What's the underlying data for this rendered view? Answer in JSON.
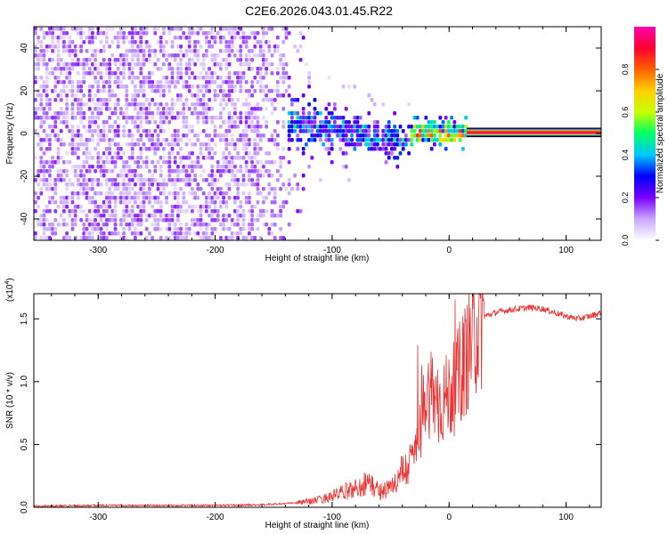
{
  "chart_data": [
    {
      "type": "heatmap",
      "title": "C2E6.2026.043.01.45.R22",
      "xlabel": "Height of straight line (km)",
      "ylabel": "Frequency (Hz)",
      "xlim": [
        -355,
        130
      ],
      "ylim": [
        -50,
        50
      ],
      "x_ticks": [
        -300,
        -200,
        -100,
        0,
        100
      ],
      "x_tick_labels": [
        "-300",
        "-200",
        "-100",
        "0",
        "100"
      ],
      "y_ticks": [
        -40,
        -20,
        0,
        20,
        40
      ],
      "y_tick_labels": [
        "-40",
        "-20",
        "0",
        "20",
        "40"
      ],
      "colorbar": {
        "label": "Normalized spectral amplitude",
        "range": [
          0,
          1
        ],
        "ticks": [
          0.0,
          0.2,
          0.4,
          0.6,
          0.8
        ],
        "tick_labels": [
          "0.0",
          "0.2",
          "0.4",
          "0.6",
          "0.8"
        ],
        "colors": [
          "#ffffff",
          "#c8a6ff",
          "#7a00ff",
          "#0000ff",
          "#00c8ff",
          "#00ff66",
          "#c8ff00",
          "#ffd000",
          "#ff6000",
          "#ff0030",
          "#ff00b0"
        ]
      },
      "regions": [
        {
          "name": "noise",
          "x_range": [
            -355,
            -140
          ],
          "freq_spread": 50,
          "amplitude": 0.12
        },
        {
          "name": "transition",
          "x_range": [
            -140,
            -35
          ],
          "freq_center_start": 6,
          "freq_center_end": -3,
          "freq_spread": 14,
          "amplitude": 0.3
        },
        {
          "name": "emergence",
          "x_range": [
            -35,
            15
          ],
          "freq_center": 1,
          "freq_spread": 5,
          "amplitude": 0.6
        },
        {
          "name": "carrier",
          "x_range": [
            15,
            130
          ],
          "freq_center": 0.5,
          "band_half_width": 2,
          "amplitude": 0.9
        }
      ]
    },
    {
      "type": "line",
      "xlabel": "Height of straight line (km)",
      "ylabel": "SNR (10 * v/v)",
      "y_multiplier": "(x10",
      "y_multiplier_exp": "4",
      "y_multiplier_close": ")",
      "xlim": [
        -355,
        130
      ],
      "ylim": [
        0,
        1.7
      ],
      "x_ticks": [
        -300,
        -200,
        -100,
        0,
        100
      ],
      "x_tick_labels": [
        "-300",
        "-200",
        "-100",
        "0",
        "100"
      ],
      "y_ticks": [
        0.0,
        0.5,
        1.0,
        1.5
      ],
      "y_tick_labels": [
        "0.0",
        "0.5",
        "1.0",
        "1.5"
      ],
      "line_color": "#ee3333",
      "series": [
        {
          "name": "SNR",
          "x": [
            -355,
            -300,
            -250,
            -200,
            -160,
            -130,
            -110,
            -100,
            -90,
            -80,
            -70,
            -60,
            -50,
            -40,
            -35,
            -30,
            -25,
            -20,
            -15,
            -10,
            -5,
            0,
            5,
            10,
            15,
            20,
            25,
            30,
            40,
            50,
            60,
            70,
            80,
            90,
            100,
            110,
            120,
            130
          ],
          "y": [
            0.01,
            0.015,
            0.015,
            0.015,
            0.02,
            0.035,
            0.06,
            0.09,
            0.12,
            0.15,
            0.2,
            0.13,
            0.15,
            0.28,
            0.32,
            0.42,
            0.6,
            0.85,
            0.95,
            0.8,
            0.85,
            0.9,
            0.95,
            1.1,
            1.2,
            1.35,
            1.45,
            1.52,
            1.55,
            1.57,
            1.58,
            1.59,
            1.58,
            1.55,
            1.52,
            1.5,
            1.52,
            1.55
          ]
        }
      ]
    }
  ]
}
